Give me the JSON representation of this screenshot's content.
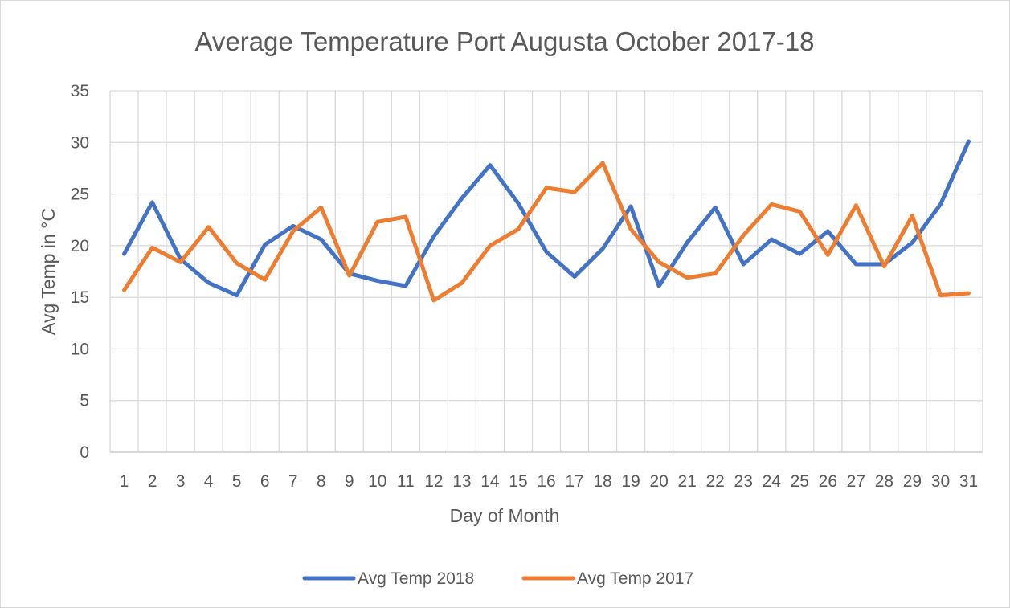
{
  "chart_data": {
    "type": "line",
    "title": "Average Temperature Port Augusta October 2017-18",
    "xlabel": "Day of Month",
    "ylabel": "Avg Temp in °C",
    "ylim": [
      0,
      35
    ],
    "yticks": [
      0,
      5,
      10,
      15,
      20,
      25,
      30,
      35
    ],
    "grid": true,
    "legend_position": "bottom",
    "categories": [
      "1",
      "2",
      "3",
      "4",
      "5",
      "6",
      "7",
      "8",
      "9",
      "10",
      "11",
      "12",
      "13",
      "14",
      "15",
      "16",
      "17",
      "18",
      "19",
      "20",
      "21",
      "22",
      "23",
      "24",
      "25",
      "26",
      "27",
      "28",
      "29",
      "30",
      "31"
    ],
    "series": [
      {
        "name": "Avg Temp 2018",
        "color": "#4472c4",
        "values": [
          19.2,
          24.2,
          18.7,
          16.4,
          15.2,
          20.1,
          21.9,
          20.6,
          17.3,
          16.6,
          16.1,
          20.9,
          24.6,
          27.8,
          24.1,
          19.4,
          17.0,
          19.7,
          23.8,
          16.1,
          20.3,
          23.7,
          18.2,
          20.6,
          19.2,
          21.4,
          18.2,
          18.2,
          20.3,
          24.0,
          30.1
        ]
      },
      {
        "name": "Avg Temp 2017",
        "color": "#ed7d31",
        "values": [
          15.7,
          19.8,
          18.4,
          21.8,
          18.3,
          16.7,
          21.4,
          23.7,
          17.1,
          22.3,
          22.8,
          14.7,
          16.4,
          20.0,
          21.6,
          25.6,
          25.2,
          28.0,
          21.6,
          18.4,
          16.9,
          17.3,
          21.0,
          24.0,
          23.3,
          19.1,
          23.9,
          18.0,
          22.9,
          15.2,
          15.4
        ]
      }
    ]
  }
}
